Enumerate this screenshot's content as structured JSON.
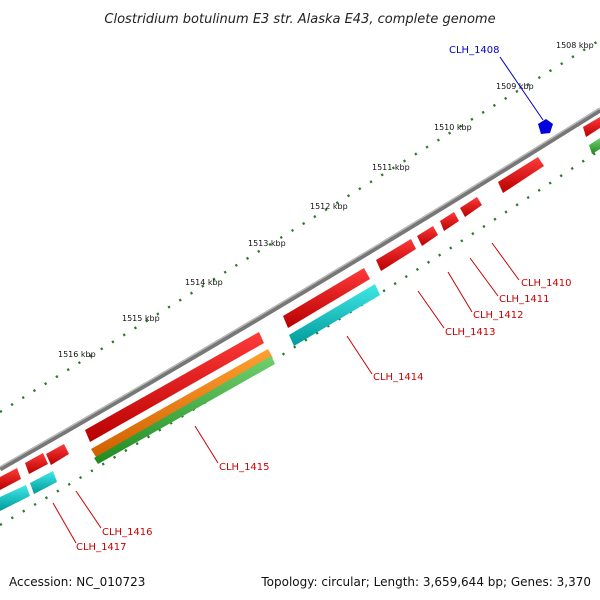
{
  "title": "Clostridium botulinum E3 str. Alaska E43, complete genome",
  "accession": "Accession: NC_010723",
  "topology": "Topology: circular; Length: 3,659,644 bp; Genes: 3,370",
  "colors": {
    "backbone": "#7a7a7a",
    "tick_dot": "#2a7a2a",
    "cds": "#e60000",
    "rrna_like": "#00c0c0",
    "orange": "#f08000",
    "green": "#40b040",
    "blue_marker": "#0000dd",
    "label_red": "#cc0000",
    "label_blue": "#0000cc"
  },
  "ticks": [
    {
      "label": "1508 kbp"
    },
    {
      "label": "1509 kbp"
    },
    {
      "label": "1510 kbp"
    },
    {
      "label": "1511 kbp"
    },
    {
      "label": "1512 kbp"
    },
    {
      "label": "1513 kbp"
    },
    {
      "label": "1514 kbp"
    },
    {
      "label": "1515 kbp"
    },
    {
      "label": "1516 kbp"
    }
  ],
  "genes": [
    {
      "name": "CLH_1408",
      "color": "blue"
    },
    {
      "name": "CLH_1410",
      "color": "red"
    },
    {
      "name": "CLH_1411",
      "color": "red"
    },
    {
      "name": "CLH_1412",
      "color": "red"
    },
    {
      "name": "CLH_1413",
      "color": "red"
    },
    {
      "name": "CLH_1414",
      "color": "red"
    },
    {
      "name": "CLH_1415",
      "color": "red"
    },
    {
      "name": "CLH_1416",
      "color": "red"
    },
    {
      "name": "CLH_1417",
      "color": "red"
    }
  ]
}
